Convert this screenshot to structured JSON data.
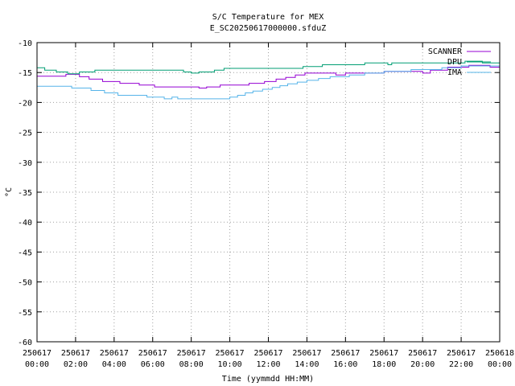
{
  "chart_data": {
    "type": "line",
    "title": "S/C Temperature for MEX",
    "subtitle": "E_SC20250617000000.sfduZ",
    "xlabel": "Time (yymmdd HH:MM)",
    "ylabel": "°C",
    "xlim": [
      0,
      24
    ],
    "ylim": [
      -60,
      -10
    ],
    "yticks": [
      -10,
      -15,
      -20,
      -25,
      -30,
      -35,
      -40,
      -45,
      -50,
      -55,
      -60
    ],
    "xticks": [
      {
        "t": 0,
        "date": "250617",
        "time": "00:00"
      },
      {
        "t": 2,
        "date": "250617",
        "time": "02:00"
      },
      {
        "t": 4,
        "date": "250617",
        "time": "04:00"
      },
      {
        "t": 6,
        "date": "250617",
        "time": "06:00"
      },
      {
        "t": 8,
        "date": "250617",
        "time": "08:00"
      },
      {
        "t": 10,
        "date": "250617",
        "time": "10:00"
      },
      {
        "t": 12,
        "date": "250617",
        "time": "12:00"
      },
      {
        "t": 14,
        "date": "250617",
        "time": "14:00"
      },
      {
        "t": 16,
        "date": "250617",
        "time": "16:00"
      },
      {
        "t": 18,
        "date": "250617",
        "time": "18:00"
      },
      {
        "t": 20,
        "date": "250617",
        "time": "20:00"
      },
      {
        "t": 22,
        "date": "250617",
        "time": "22:00"
      },
      {
        "t": 24,
        "date": "250618",
        "time": "00:00"
      }
    ],
    "grid": true,
    "legend": "top-right",
    "series": [
      {
        "name": "SCANNER",
        "color": "#9400d3",
        "points": [
          [
            0,
            -15.6
          ],
          [
            1.5,
            -15.6
          ],
          [
            1.5,
            -15.3
          ],
          [
            2.2,
            -15.3
          ],
          [
            2.2,
            -15.7
          ],
          [
            2.7,
            -15.7
          ],
          [
            2.7,
            -16.1
          ],
          [
            3.4,
            -16.1
          ],
          [
            3.4,
            -16.5
          ],
          [
            4.3,
            -16.5
          ],
          [
            4.3,
            -16.8
          ],
          [
            5.3,
            -16.8
          ],
          [
            5.3,
            -17.1
          ],
          [
            6.1,
            -17.1
          ],
          [
            6.1,
            -17.4
          ],
          [
            8.4,
            -17.4
          ],
          [
            8.4,
            -17.6
          ],
          [
            8.8,
            -17.6
          ],
          [
            8.8,
            -17.4
          ],
          [
            9.5,
            -17.4
          ],
          [
            9.5,
            -17.1
          ],
          [
            11.0,
            -17.1
          ],
          [
            11.0,
            -16.8
          ],
          [
            11.8,
            -16.8
          ],
          [
            11.8,
            -16.5
          ],
          [
            12.4,
            -16.5
          ],
          [
            12.4,
            -16.1
          ],
          [
            12.9,
            -16.1
          ],
          [
            12.9,
            -15.8
          ],
          [
            13.4,
            -15.8
          ],
          [
            13.4,
            -15.4
          ],
          [
            13.9,
            -15.4
          ],
          [
            13.9,
            -15.1
          ],
          [
            15.5,
            -15.1
          ],
          [
            15.5,
            -15.4
          ],
          [
            16.0,
            -15.4
          ],
          [
            16.0,
            -15.1
          ],
          [
            18.0,
            -15.1
          ],
          [
            18.0,
            -14.8
          ],
          [
            20.0,
            -14.8
          ],
          [
            20.0,
            -15.1
          ],
          [
            20.4,
            -15.1
          ],
          [
            20.4,
            -14.6
          ],
          [
            21.3,
            -14.6
          ],
          [
            21.3,
            -14.1
          ],
          [
            22.4,
            -14.1
          ],
          [
            22.4,
            -13.8
          ],
          [
            23.5,
            -13.8
          ],
          [
            23.5,
            -14.1
          ],
          [
            24,
            -14.1
          ]
        ]
      },
      {
        "name": "DPU",
        "color": "#009e73",
        "points": [
          [
            0,
            -14.2
          ],
          [
            0.4,
            -14.2
          ],
          [
            0.4,
            -14.6
          ],
          [
            1.0,
            -14.6
          ],
          [
            1.0,
            -14.9
          ],
          [
            1.6,
            -14.9
          ],
          [
            1.6,
            -15.2
          ],
          [
            2.2,
            -15.2
          ],
          [
            2.2,
            -14.9
          ],
          [
            3.0,
            -14.9
          ],
          [
            3.0,
            -14.6
          ],
          [
            7.6,
            -14.6
          ],
          [
            7.6,
            -14.9
          ],
          [
            8.0,
            -14.9
          ],
          [
            8.0,
            -15.1
          ],
          [
            8.4,
            -15.1
          ],
          [
            8.4,
            -14.9
          ],
          [
            9.2,
            -14.9
          ],
          [
            9.2,
            -14.6
          ],
          [
            9.7,
            -14.6
          ],
          [
            9.7,
            -14.3
          ],
          [
            13.8,
            -14.3
          ],
          [
            13.8,
            -14.0
          ],
          [
            14.8,
            -14.0
          ],
          [
            14.8,
            -13.7
          ],
          [
            17.0,
            -13.7
          ],
          [
            17.0,
            -13.4
          ],
          [
            18.2,
            -13.4
          ],
          [
            18.2,
            -13.7
          ],
          [
            18.4,
            -13.7
          ],
          [
            18.4,
            -13.4
          ],
          [
            22.2,
            -13.4
          ],
          [
            22.2,
            -13.1
          ],
          [
            23.1,
            -13.1
          ],
          [
            23.1,
            -13.4
          ],
          [
            24,
            -13.4
          ]
        ]
      },
      {
        "name": "IMA",
        "color": "#56b4e9",
        "points": [
          [
            0,
            -17.3
          ],
          [
            1.8,
            -17.3
          ],
          [
            1.8,
            -17.6
          ],
          [
            2.8,
            -17.6
          ],
          [
            2.8,
            -18.0
          ],
          [
            3.5,
            -18.0
          ],
          [
            3.5,
            -18.4
          ],
          [
            4.2,
            -18.4
          ],
          [
            4.2,
            -18.8
          ],
          [
            5.7,
            -18.8
          ],
          [
            5.7,
            -19.1
          ],
          [
            6.6,
            -19.1
          ],
          [
            6.6,
            -19.4
          ],
          [
            7.0,
            -19.4
          ],
          [
            7.0,
            -19.1
          ],
          [
            7.3,
            -19.1
          ],
          [
            7.3,
            -19.4
          ],
          [
            10.0,
            -19.4
          ],
          [
            10.0,
            -19.1
          ],
          [
            10.4,
            -19.1
          ],
          [
            10.4,
            -18.8
          ],
          [
            10.8,
            -18.8
          ],
          [
            10.8,
            -18.4
          ],
          [
            11.2,
            -18.4
          ],
          [
            11.2,
            -18.1
          ],
          [
            11.7,
            -18.1
          ],
          [
            11.7,
            -17.8
          ],
          [
            12.2,
            -17.8
          ],
          [
            12.2,
            -17.5
          ],
          [
            12.6,
            -17.5
          ],
          [
            12.6,
            -17.2
          ],
          [
            13.0,
            -17.2
          ],
          [
            13.0,
            -16.9
          ],
          [
            13.5,
            -16.9
          ],
          [
            13.5,
            -16.6
          ],
          [
            14.0,
            -16.6
          ],
          [
            14.0,
            -16.3
          ],
          [
            14.6,
            -16.3
          ],
          [
            14.6,
            -16.0
          ],
          [
            15.2,
            -16.0
          ],
          [
            15.2,
            -15.7
          ],
          [
            16.2,
            -15.7
          ],
          [
            16.2,
            -15.4
          ],
          [
            17.0,
            -15.4
          ],
          [
            17.0,
            -15.1
          ],
          [
            18.0,
            -15.1
          ],
          [
            18.0,
            -14.8
          ],
          [
            19.4,
            -14.8
          ],
          [
            19.4,
            -14.5
          ],
          [
            21.0,
            -14.5
          ],
          [
            21.0,
            -14.2
          ],
          [
            22.0,
            -14.2
          ],
          [
            22.0,
            -13.9
          ],
          [
            24,
            -13.9
          ]
        ]
      }
    ]
  }
}
